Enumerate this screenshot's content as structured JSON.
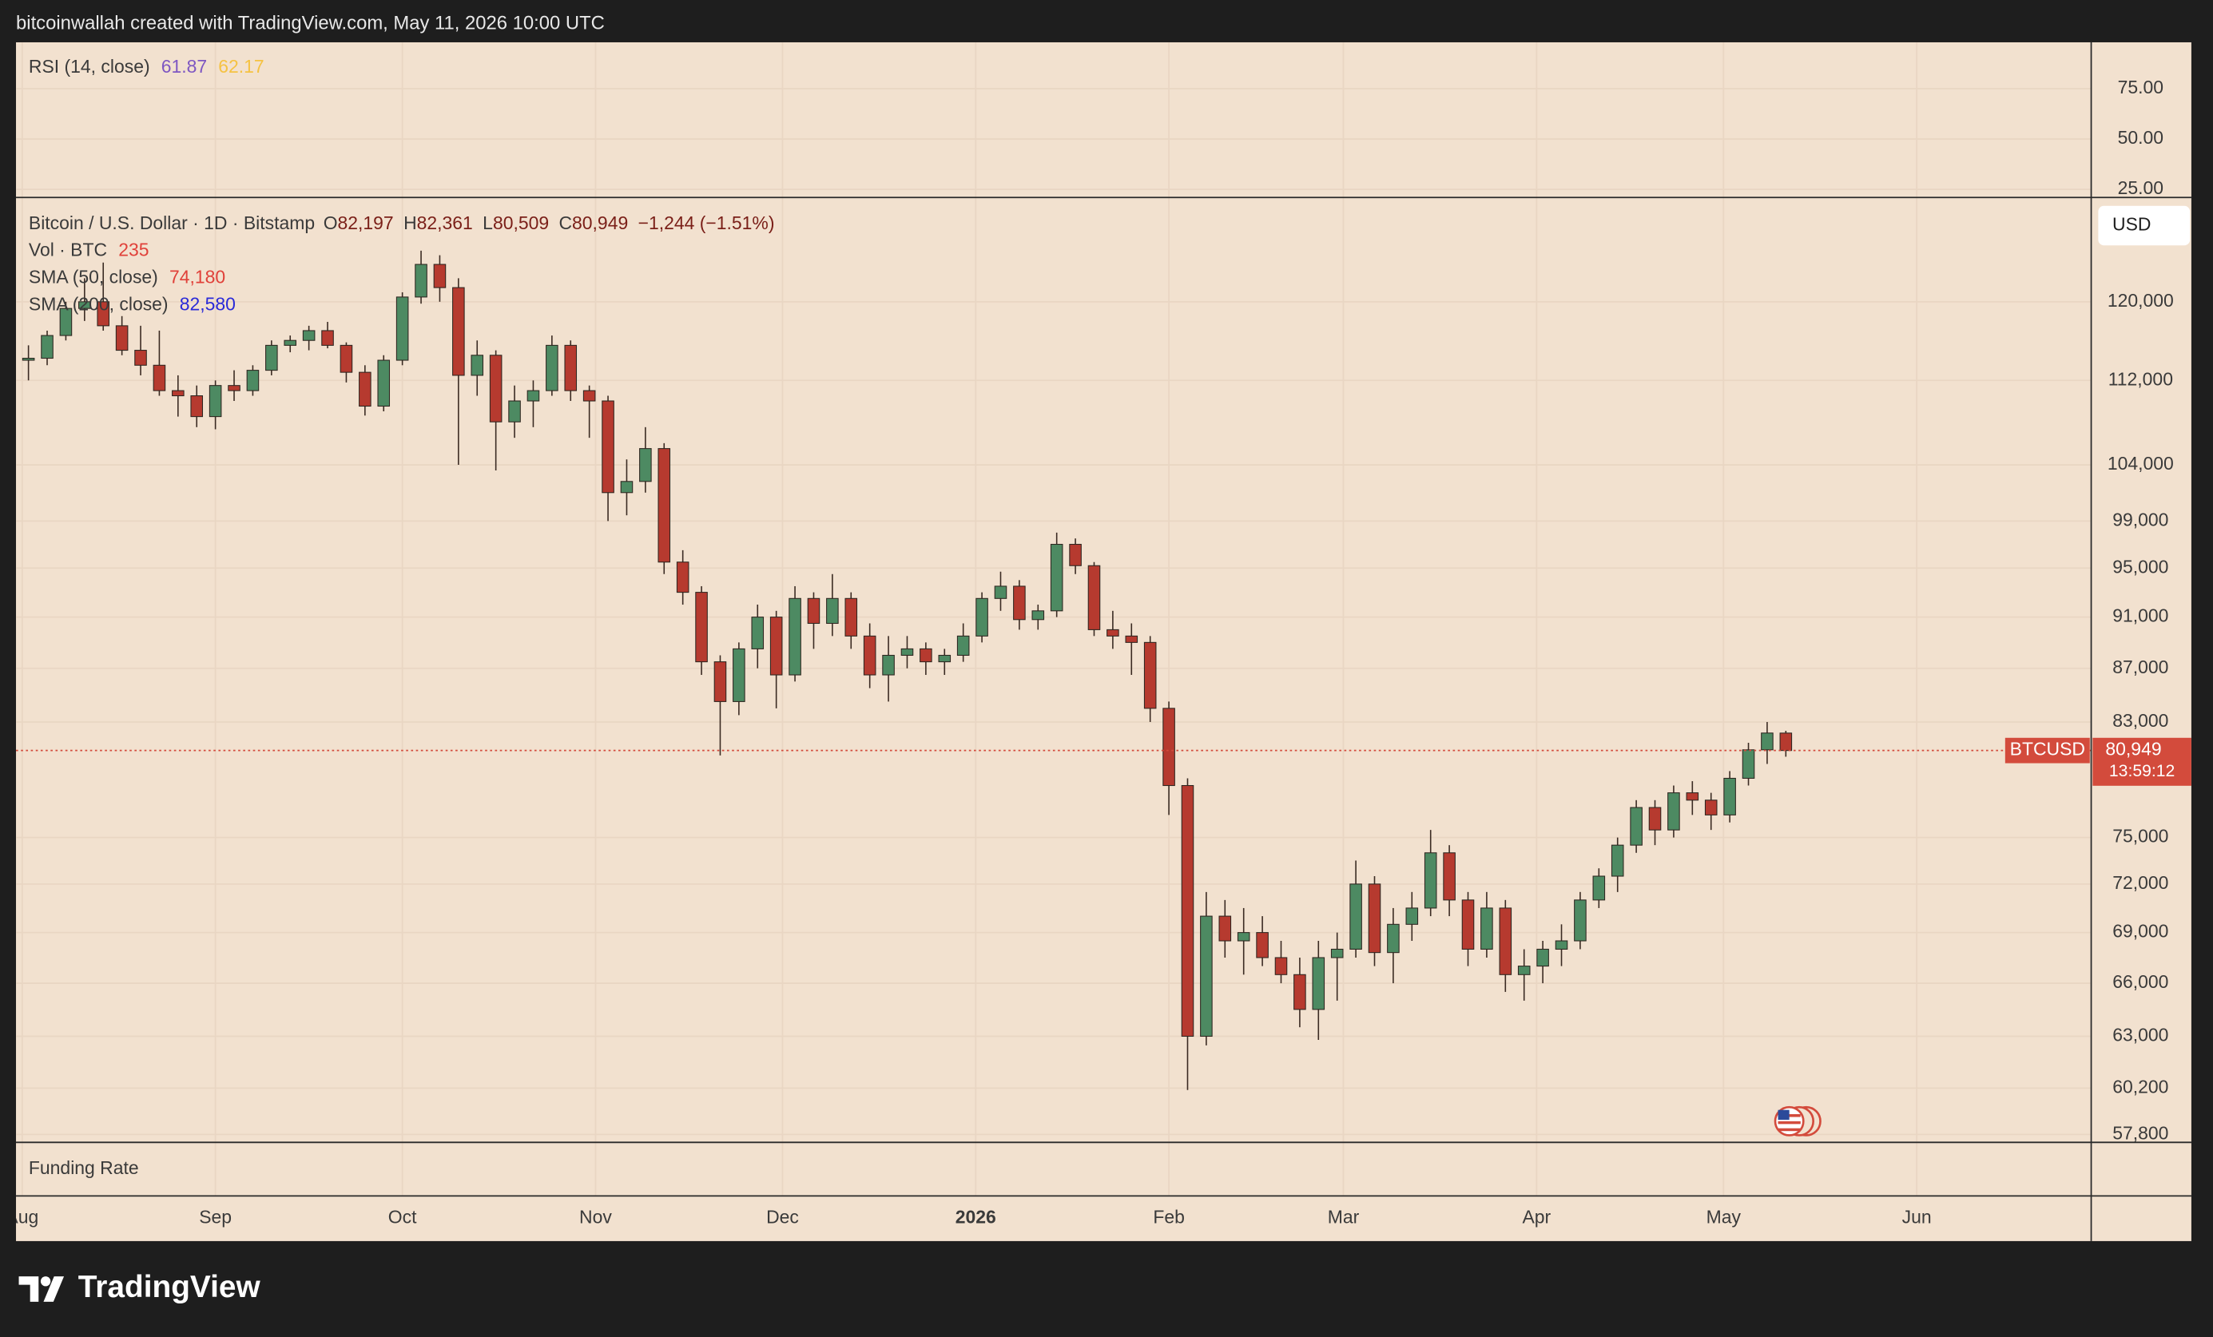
{
  "header": {
    "text": "bitcoinwallah created with TradingView.com, May 11, 2026 10:00 UTC"
  },
  "footer": {
    "brand": "TradingView"
  },
  "chart_data": [
    {
      "type": "indicator",
      "title": "RSI (14, close)",
      "legend": [
        {
          "value": 61.87,
          "color": "#7e57c2"
        },
        {
          "value": 62.17,
          "color": "#f5c242"
        }
      ],
      "ylim": [
        21,
        98
      ],
      "yticks": [
        {
          "value": 75,
          "label": "75.00"
        },
        {
          "value": 50,
          "label": "50.00"
        },
        {
          "value": 25,
          "label": "25.00"
        }
      ],
      "grid": true
    },
    {
      "type": "candlestick",
      "title": "Bitcoin / U.S. Dollar · 1D · Bitstamp",
      "ohlc_legend": [
        {
          "prefix": "O",
          "value": 82197,
          "label": "82,197"
        },
        {
          "prefix": "H",
          "value": 82361,
          "label": "82,361"
        },
        {
          "prefix": "L",
          "value": 80509,
          "label": "80,509"
        },
        {
          "prefix": "C",
          "value": 80949,
          "label": "80,949"
        }
      ],
      "change": "−1,244 (−1.51%)",
      "indicators": [
        {
          "name": "Vol · BTC",
          "value": 235,
          "color": "#e0413a"
        },
        {
          "name": "SMA (50, close)",
          "value": 74180,
          "value_label": "74,180",
          "color": "#e0413a"
        },
        {
          "name": "SMA (200, close)",
          "value": 82580,
          "value_label": "82,580",
          "color": "#2a2ad8"
        }
      ],
      "last_price": {
        "symbol": "BTCUSD",
        "value": 80949,
        "label": "80,949",
        "countdown": "13:59:12",
        "color": "#d34b3c"
      },
      "currency": "USD",
      "up_color": "#4d8a62",
      "down_color": "#b63a2f",
      "log_scale": true,
      "grid": true,
      "xlim": [
        "2025-07-31",
        "2026-06-29"
      ],
      "xticks": [
        {
          "value": "2025-08-01",
          "label": "Aug"
        },
        {
          "value": "2025-09-01",
          "label": "Sep"
        },
        {
          "value": "2025-10-01",
          "label": "Oct"
        },
        {
          "value": "2025-11-01",
          "label": "Nov"
        },
        {
          "value": "2025-12-01",
          "label": "Dec"
        },
        {
          "value": "2026-01-01",
          "label": "2026"
        },
        {
          "value": "2026-02-01",
          "label": "Feb"
        },
        {
          "value": "2026-03-01",
          "label": "Mar"
        },
        {
          "value": "2026-04-01",
          "label": "Apr"
        },
        {
          "value": "2026-05-01",
          "label": "May"
        },
        {
          "value": "2026-06-01",
          "label": "Jun"
        }
      ],
      "ylim": [
        57400,
        131500
      ],
      "yticks": [
        {
          "value": 57800,
          "label": "57,800"
        },
        {
          "value": 60200,
          "label": "60,200"
        },
        {
          "value": 63000,
          "label": "63,000"
        },
        {
          "value": 66000,
          "label": "66,000"
        },
        {
          "value": 69000,
          "label": "69,000"
        },
        {
          "value": 72000,
          "label": "72,000"
        },
        {
          "value": 75000,
          "label": "75,000"
        },
        {
          "value": 83000,
          "label": "83,000"
        },
        {
          "value": 87000,
          "label": "87,000"
        },
        {
          "value": 91000,
          "label": "91,000"
        },
        {
          "value": 95000,
          "label": "95,000"
        },
        {
          "value": 99000,
          "label": "99,000"
        },
        {
          "value": 104000,
          "label": "104,000"
        },
        {
          "value": 112000,
          "label": "112,000"
        },
        {
          "value": 120000,
          "label": "120,000"
        }
      ],
      "x": [
        "2025-08-02",
        "2025-08-05",
        "2025-08-08",
        "2025-08-11",
        "2025-08-14",
        "2025-08-17",
        "2025-08-20",
        "2025-08-23",
        "2025-08-26",
        "2025-08-29",
        "2025-09-01",
        "2025-09-04",
        "2025-09-07",
        "2025-09-10",
        "2025-09-13",
        "2025-09-16",
        "2025-09-19",
        "2025-09-22",
        "2025-09-25",
        "2025-09-28",
        "2025-10-01",
        "2025-10-04",
        "2025-10-07",
        "2025-10-10",
        "2025-10-13",
        "2025-10-16",
        "2025-10-19",
        "2025-10-22",
        "2025-10-25",
        "2025-10-28",
        "2025-10-31",
        "2025-11-03",
        "2025-11-06",
        "2025-11-09",
        "2025-11-12",
        "2025-11-15",
        "2025-11-18",
        "2025-11-21",
        "2025-11-24",
        "2025-11-27",
        "2025-11-30",
        "2025-12-03",
        "2025-12-06",
        "2025-12-09",
        "2025-12-12",
        "2025-12-15",
        "2025-12-18",
        "2025-12-21",
        "2025-12-24",
        "2025-12-27",
        "2025-12-30",
        "2026-01-02",
        "2026-01-05",
        "2026-01-08",
        "2026-01-11",
        "2026-01-14",
        "2026-01-17",
        "2026-01-20",
        "2026-01-23",
        "2026-01-26",
        "2026-01-29",
        "2026-02-01",
        "2026-02-04",
        "2026-02-07",
        "2026-02-10",
        "2026-02-13",
        "2026-02-16",
        "2026-02-19",
        "2026-02-22",
        "2026-02-25",
        "2026-02-28",
        "2026-03-03",
        "2026-03-06",
        "2026-03-09",
        "2026-03-12",
        "2026-03-15",
        "2026-03-18",
        "2026-03-21",
        "2026-03-24",
        "2026-03-27",
        "2026-03-30",
        "2026-04-02",
        "2026-04-05",
        "2026-04-08",
        "2026-04-11",
        "2026-04-14",
        "2026-04-17",
        "2026-04-20",
        "2026-04-23",
        "2026-04-26",
        "2026-04-29",
        "2026-05-02",
        "2026-05-05",
        "2026-05-08",
        "2026-05-11"
      ],
      "open": [
        114000,
        114200,
        116500,
        119300,
        120000,
        117500,
        115000,
        113500,
        111000,
        110500,
        108500,
        111500,
        111000,
        113000,
        115500,
        116000,
        117000,
        115500,
        112800,
        109500,
        114000,
        120500,
        124000,
        121500,
        112500,
        114500,
        108000,
        110000,
        111000,
        115500,
        111000,
        110000,
        101500,
        102500,
        105500,
        95500,
        93000,
        87500,
        84500,
        88500,
        91000,
        86500,
        92500,
        90500,
        92500,
        89500,
        86500,
        88000,
        88500,
        87500,
        88000,
        89500,
        92500,
        93500,
        90800,
        91500,
        97000,
        95200,
        90000,
        89500,
        89000,
        84000,
        78500,
        63000,
        70000,
        68500,
        69000,
        67500,
        66500,
        64500,
        67500,
        68000,
        72000,
        67800,
        69500,
        70500,
        74000,
        71000,
        68000,
        70500,
        66500,
        67000,
        68000,
        68500,
        71000,
        72500,
        74500,
        77000,
        75500,
        78000,
        77500,
        76500,
        79000,
        81000,
        82197
      ],
      "high": [
        115500,
        117000,
        120000,
        122500,
        124200,
        118500,
        117500,
        117000,
        112500,
        111500,
        112000,
        113000,
        113500,
        116000,
        116500,
        117500,
        117900,
        115800,
        113500,
        114500,
        121000,
        125500,
        125000,
        122500,
        116000,
        115000,
        111500,
        112000,
        116500,
        116000,
        111500,
        110500,
        104500,
        107500,
        106000,
        96500,
        93500,
        88000,
        89000,
        92000,
        91500,
        93500,
        93000,
        94500,
        93000,
        90500,
        89500,
        89500,
        89000,
        88500,
        90500,
        93000,
        94700,
        94000,
        92000,
        98000,
        97500,
        95500,
        91500,
        90500,
        89500,
        84500,
        79000,
        71500,
        71000,
        70500,
        70000,
        68500,
        67500,
        68500,
        69000,
        73500,
        72500,
        70500,
        71500,
        75500,
        74500,
        71500,
        71500,
        71000,
        68000,
        68500,
        69500,
        71500,
        73000,
        75000,
        77500,
        77500,
        78500,
        78800,
        78000,
        79500,
        81500,
        83000,
        82361
      ],
      "low": [
        112000,
        113500,
        116000,
        118000,
        117000,
        114500,
        112500,
        110500,
        108500,
        107500,
        107300,
        110000,
        110500,
        112500,
        114800,
        115000,
        115200,
        111800,
        108600,
        109000,
        113500,
        119800,
        120000,
        104000,
        110500,
        103500,
        106500,
        107500,
        110500,
        110000,
        106500,
        99000,
        99500,
        101500,
        94500,
        92000,
        86500,
        80600,
        83500,
        87000,
        84000,
        86000,
        88500,
        89500,
        88500,
        85500,
        84500,
        87000,
        86500,
        86500,
        87500,
        89000,
        91500,
        90000,
        90000,
        91000,
        94500,
        89500,
        88500,
        86500,
        83000,
        76500,
        60100,
        62500,
        67500,
        66500,
        67000,
        66000,
        63500,
        62800,
        65000,
        67500,
        67000,
        66000,
        68500,
        70000,
        70000,
        67000,
        67500,
        65500,
        65000,
        66000,
        67000,
        68000,
        70500,
        71500,
        74000,
        74500,
        75000,
        76500,
        75500,
        76000,
        78500,
        80000,
        80509
      ],
      "close": [
        114200,
        116500,
        119300,
        120000,
        117500,
        115000,
        113500,
        111000,
        110500,
        108500,
        111500,
        111000,
        113000,
        115500,
        116000,
        117000,
        115500,
        112800,
        109500,
        114000,
        120500,
        124000,
        121500,
        112500,
        114500,
        108000,
        110000,
        111000,
        115500,
        111000,
        110000,
        101500,
        102500,
        105500,
        95500,
        93000,
        87500,
        84500,
        88500,
        91000,
        86500,
        92500,
        90500,
        92500,
        89500,
        86500,
        88000,
        88500,
        87500,
        88000,
        89500,
        92500,
        93500,
        90800,
        91500,
        97000,
        95200,
        90000,
        89500,
        89000,
        84000,
        78500,
        63000,
        70000,
        68500,
        69000,
        67500,
        66500,
        64500,
        67500,
        68000,
        72000,
        67800,
        69500,
        70500,
        74000,
        71000,
        68000,
        70500,
        66500,
        67000,
        68000,
        68500,
        71000,
        72500,
        74500,
        77000,
        75500,
        78000,
        77500,
        76500,
        79000,
        81000,
        82200,
        80949
      ]
    },
    {
      "type": "indicator",
      "title": "Funding Rate"
    }
  ]
}
